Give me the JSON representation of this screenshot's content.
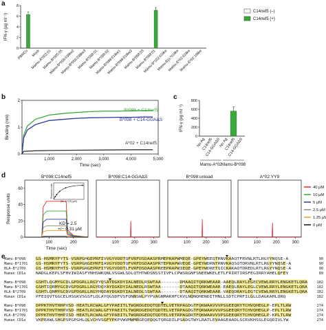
{
  "figure": {
    "panels": {
      "a": {
        "letter": "a",
        "chart_data": {
          "type": "bar",
          "ylabel": "IFN-γ (pg ml⁻¹)",
          "ylim": [
            0,
            8
          ],
          "yticks": [
            "0",
            "2",
            "4",
            "6",
            "8"
          ],
          "categories": [
            "PBMCs",
            "Mock",
            "Mamu-A*002:01",
            "Mamu-B*005:05",
            "Mamu-B*056:03like2",
            "Mamu-B*056:03like3",
            "Mamu-B*098:01",
            "Mamu-B*098:02",
            "Mamu-B*098:01like1",
            "Mamu-B*098:01like2",
            "Mamu-B*098:03",
            "Mamu-B*098:01",
            "Mamu-B*102:01like",
            "Mamu-B1L*01like",
            "Mamu-E*02:01like",
            "Mamu-E*02:16like"
          ],
          "series": [
            {
              "name": "C14nef5 (–)",
              "color": "#ffffff",
              "values": [
                0,
                0,
                0,
                0,
                0,
                0,
                0,
                0,
                0,
                0,
                0,
                0,
                0,
                0,
                0,
                0
              ]
            },
            {
              "name": "C14nef5 (+)",
              "color": "#3aa83a",
              "values": [
                6.3,
                0,
                0,
                0,
                0,
                0,
                0,
                0,
                0,
                0,
                0,
                7.1,
                0,
                0,
                0,
                0
              ]
            }
          ],
          "legend_position": "top-right"
        }
      },
      "b": {
        "letter": "b",
        "chart_data": {
          "type": "line",
          "xlabel": "Time (sec)",
          "ylabel": "Binding (nm)",
          "xlim": [
            0,
            5000
          ],
          "ylim": [
            0,
            2
          ],
          "xticks": [
            "1,000",
            "2,000",
            "3,000",
            "4,000",
            "5,000"
          ],
          "yticks": [
            "0",
            "1",
            "2"
          ],
          "series": [
            {
              "name": "B*098 + C14nef5",
              "color": "#3aa83a",
              "x": [
                0,
                60,
                200,
                500,
                1000,
                1600,
                2000,
                2500,
                3000,
                3500,
                4000,
                4500,
                4800
              ],
              "y": [
                0,
                0.7,
                1.05,
                1.3,
                1.45,
                1.52,
                1.55,
                1.58,
                1.6,
                1.6,
                1.61,
                1.62,
                1.62
              ]
            },
            {
              "name": "B*098 + C14-GGAΔS",
              "color": "#2b3a9c",
              "x": [
                0,
                60,
                200,
                500,
                1000,
                1600,
                2000,
                2500,
                3000,
                3500,
                4000,
                4500,
                4800
              ],
              "y": [
                0,
                0.6,
                0.9,
                1.1,
                1.25,
                1.3,
                1.33,
                1.35,
                1.36,
                1.37,
                1.37,
                1.38,
                1.38
              ]
            },
            {
              "name": "A*02 + C14nef5",
              "color": "#333333",
              "x": [
                0,
                60,
                500,
                1000,
                2000,
                3000,
                4000,
                4800
              ],
              "y": [
                0,
                0.1,
                0.12,
                0.13,
                0.14,
                0.15,
                0.16,
                0.16
              ]
            }
          ]
        }
      },
      "c": {
        "letter": "c",
        "chart_data": {
          "type": "bar",
          "ylabel": "IFN-γ (pg ml⁻¹)",
          "ylim": [
            0,
            800
          ],
          "yticks": [
            "0",
            "200",
            "400",
            "600",
            "800"
          ],
          "categories": [
            "No Ag",
            "C14nef5",
            "C14-GGAΔS",
            "No Ag",
            "C14nef5",
            "C14-GGAΔS"
          ],
          "groups": [
            "Mamu-A*02",
            "Mamu-B*098"
          ],
          "values": [
            0,
            0,
            0,
            0,
            560,
            0
          ],
          "color": "#3aa83a"
        }
      },
      "d": {
        "letter": "d",
        "ylabel": "Response units",
        "xlabel": "Time (sec)",
        "kd_text1": "KD = 2.5",
        "kd_text2": "+/− 0.31 μM",
        "inset_ylabel": "Response units",
        "inset_xlabel": "[NL-1 TCR] (μM)",
        "legend": [
          {
            "label": "40 μM",
            "color": "#e8262b"
          },
          {
            "label": "10 μM",
            "color": "#3aa83a"
          },
          {
            "label": "5 μM",
            "color": "#2b3a9c"
          },
          {
            "label": "2.5 μM",
            "color": "#888888"
          },
          {
            "label": "1.25 μM",
            "color": "#f29a2e"
          },
          {
            "label": "0 μM",
            "color": "#111111"
          }
        ],
        "subplots": [
          {
            "title": "B*098:C14nef5",
            "xticks": [
              "100",
              "200"
            ],
            "yticks": [
              "0",
              "20",
              "40",
              "60"
            ]
          },
          {
            "title": "B*098:C14-GGAΔS",
            "xticks": [
              "100",
              "200",
              "300"
            ]
          },
          {
            "title": "B*098:unload",
            "xticks": [
              "100",
              "200",
              "300"
            ]
          },
          {
            "title": "A*02:YY9",
            "xticks": [
              "100",
              "200",
              "300"
            ]
          }
        ]
      },
      "e": {
        "letter": "e",
        "blocks": [
          {
            "rows": [
              {
                "name": "Mamu-B*098",
                "seq": "GS-HSMRYFYTS-VSRPGHGEPRFIVVGYVDDTQFVRFDSDAASPRMEPRAPWMEQE-GPEYWEEQTRNVKAAQTFRVNLRTLRGYYNQSE-A",
                "num": "90"
              },
              {
                "name": "Mamu-B*1701",
                "seq": "GS-HSMRYFYTS-VSRPGRGEPRFIAVGYVDDTQFVRFDSDAASPRTEPRAPWVEQE-GPEYWDRNTRNVKAQSQTDRVNLRTLRGYYNQSE-A",
                "num": "90"
              },
              {
                "name": "HLA-B*2709",
                "seq": "GS-HSMRYFHTS-VSRPGRGEPRFITVGYVDDTLFVRFDSDAASPREEPRAPWIEQE-GPEYWDRETQICKAKAQTDREDLRTLRGYYNQSE-A",
                "num": "90"
              },
              {
                "name": "Human CD1a",
                "seq": "NADGLKEPLSFHVIWIASFYNHSWKQNLVSGWLSDLQTHTWDSNSSTIVFLCPWSRGNFSNEEWKELETLFRIRTIRSFEGIRRYAHELQFEY",
                "num": "89"
              }
            ]
          },
          {
            "rows": [
              {
                "name": "Mamu-B*098",
                "seq": "GSHTLQGMYGCDLGPDGRLLRGYYQSAYDGKDYIALNEDLRSWTAA-------DMAAQITQRKWEAAR-AAEQLRAYLEGECVEWLRRYLENGKETLQRA",
                "num": "182"
              },
              {
                "name": "Mamu-B*1701",
                "seq": "GSHTIQRMYGCDVGPDGRLLRGYDQYAYDGKDYIALNEDLRSWTAA-------DTAAQITQRKWEAAR-EAEQLRAYLEGLCVEWLRRYLENGKETLQRA",
                "num": "182"
              },
              {
                "name": "HLA-B*2709",
                "seq": "GSHTLQNMYGCDVGPDGRLLRGYHQDAYDGKDYIALNEDLSSWTAA-------DTAAQITQRKWEAAR-VAEQDRAYLEGTCVEWLRRYLENGKETLQRA",
                "num": "182"
              },
              {
                "name": "Human CD1a",
                "seq": "PFEIQVTGGCELHSGKVSGSFLQLAYQGSDFVSFQNNSWLPYPVAGNMAKHFCKVLNQNQHENDITHNLLSDTCPRFILGLLDAGKAHLQRQ",
                "num": "182"
              }
            ]
          },
          {
            "rows": [
              {
                "name": "Mamu-B*098",
                "seq": "DPPKTHVTHHPVSD-HEATLRCWALGFYPAEITLTWQRDGEDQTQDTELVETRPAGDGTFQKWAAVVVPSGEEQRYTCHVQHEGLP-EPLTLRW",
                "num": "274"
              },
              {
                "name": "Mamu-B*1701",
                "seq": "DPPKTHVTHHPVSD-HEATLRCWALGFYPAEITLTWQRDGEDQTQDTELVETRPAGDGTFQKWAAVVVPSGEEQRYTCHVQHEGLP-EPLTLRW",
                "num": "274"
              },
              {
                "name": "HLA-B*2709",
                "seq": "DPPKTHVTHHPISD-HEATLRCWALGFYPAEITLTWQRDGEDQTQDTELVETRPAGDRTFQKWAAVVVPSGEEQRYTCHVQHEGLP-KPLTLRW",
                "num": "274"
              },
              {
                "name": "Human CD1a",
                "seq": "VKPEAWLSHGPSPGPGHLQLVCHVSGFYPKPVWVMWMRGEQEQQGTQRGDILPSADGTWYLRATLEVAAGEAADLSCRVKHSSLEGQDIVLYW",
                "num": "274"
              }
            ]
          }
        ]
      }
    }
  }
}
